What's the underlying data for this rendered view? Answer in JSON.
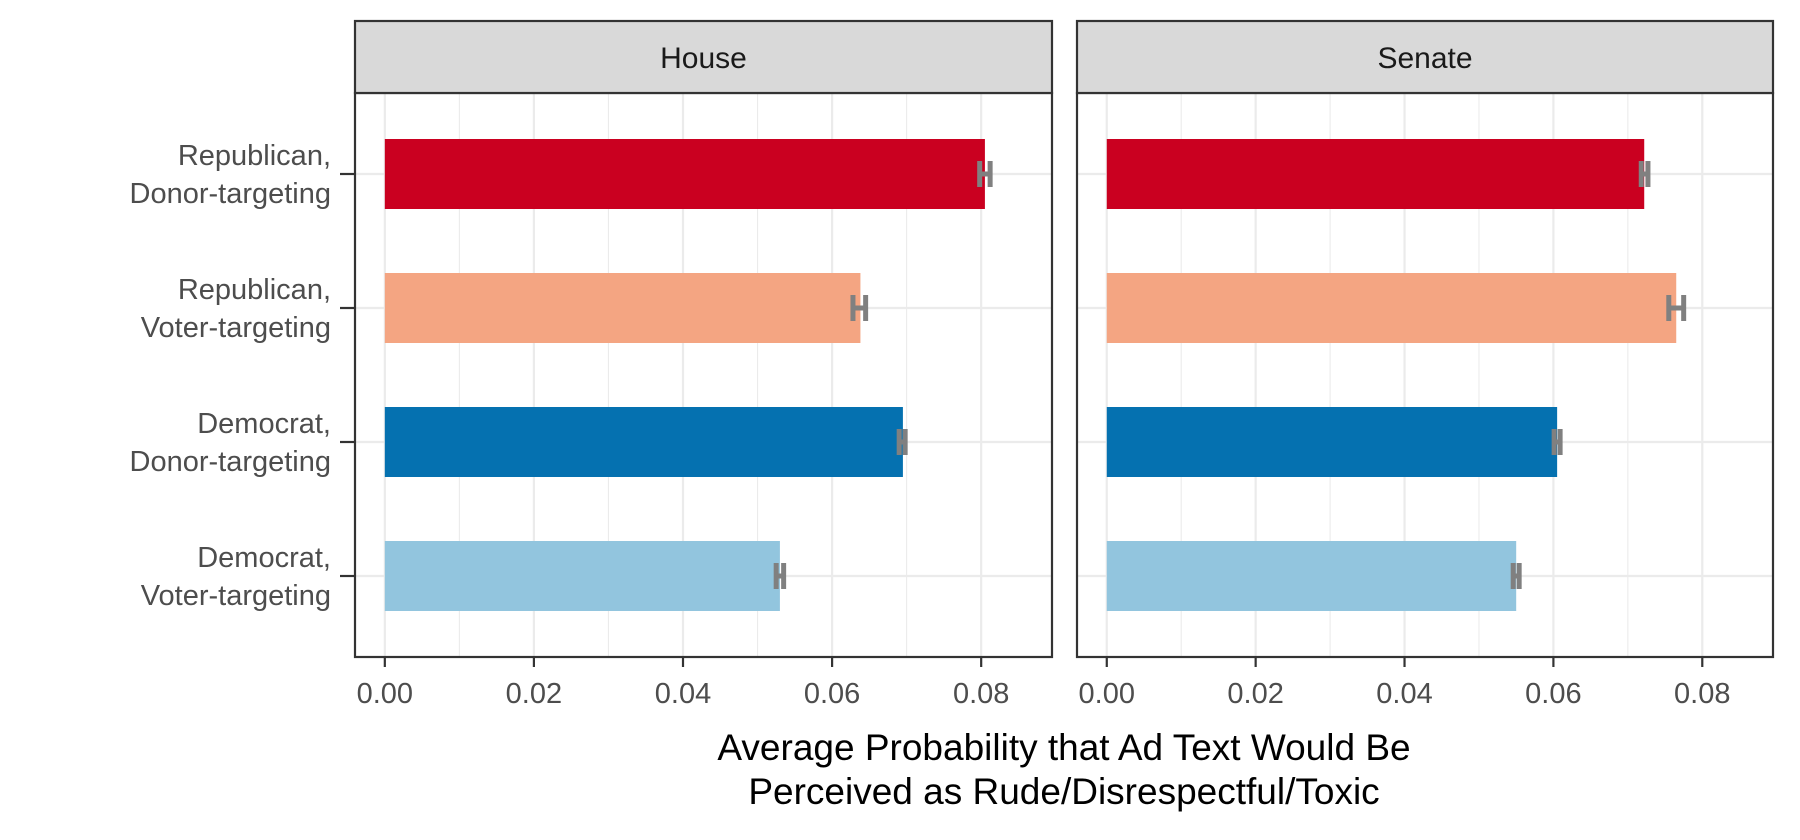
{
  "chart_data": {
    "type": "bar",
    "orientation": "horizontal",
    "facets": [
      "House",
      "Senate"
    ],
    "categories": [
      "Republican,\nDonor-targeting",
      "Republican,\nVoter-targeting",
      "Democrat,\nDonor-targeting",
      "Democrat,\nVoter-targeting"
    ],
    "colors": [
      "#ca0020",
      "#f4a582",
      "#0571b0",
      "#92c5de"
    ],
    "errorbar_color": "#808080",
    "panels": [
      {
        "facet": "House",
        "values": [
          0.0805,
          0.0638,
          0.0695,
          0.053
        ],
        "error_low": [
          0.0798,
          0.0628,
          0.069,
          0.0525
        ],
        "error_high": [
          0.0812,
          0.0645,
          0.0698,
          0.0535
        ]
      },
      {
        "facet": "Senate",
        "values": [
          0.0722,
          0.0765,
          0.0605,
          0.055
        ],
        "error_low": [
          0.0718,
          0.0755,
          0.0601,
          0.0546
        ],
        "error_high": [
          0.0727,
          0.0775,
          0.0609,
          0.0554
        ]
      }
    ],
    "xlim": [
      -0.004,
      0.0895
    ],
    "xticks": [
      0.0,
      0.02,
      0.04,
      0.06,
      0.08
    ],
    "xtick_labels": [
      "0.00",
      "0.02",
      "0.04",
      "0.06",
      "0.08"
    ],
    "xlabel": "Average Probability that Ad Text Would Be\nPerceived as Rude/Disrespectful/Toxic",
    "ylabel": "",
    "grid": true,
    "legend": "none"
  }
}
